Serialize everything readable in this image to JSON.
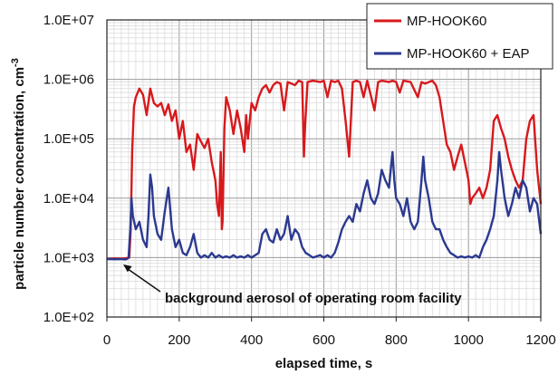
{
  "chart_data": {
    "type": "line",
    "xlabel": "elapsed time, s",
    "ylabel": "particle number concentration, cm",
    "ylabel_superscript": "-3",
    "xlim": [
      0,
      1200
    ],
    "ylim": [
      100,
      10000000
    ],
    "y_scale": "log",
    "grid": true,
    "legend_position": "top-right",
    "x_ticks": [
      0,
      200,
      400,
      600,
      800,
      1000,
      1200
    ],
    "x_tick_labels": [
      "0",
      "200",
      "400",
      "600",
      "800",
      "1000",
      "1200"
    ],
    "y_ticks": [
      100,
      1000,
      10000,
      100000,
      1000000,
      10000000
    ],
    "y_tick_labels": [
      "1.0E+02",
      "1.0E+03",
      "1.0E+04",
      "1.0E+05",
      "1.0E+06",
      "1.0E+07"
    ],
    "annotation": {
      "text": "background aerosol of operating room facility",
      "points_to": {
        "x": 40,
        "y": 950
      }
    },
    "series": [
      {
        "name": "MP-HOOK60",
        "color": "#d7191c",
        "points": [
          [
            0,
            950
          ],
          [
            20,
            970
          ],
          [
            40,
            960
          ],
          [
            55,
            980
          ],
          [
            62,
            1000
          ],
          [
            66,
            3000
          ],
          [
            70,
            60000
          ],
          [
            75,
            350000
          ],
          [
            80,
            500000
          ],
          [
            90,
            700000
          ],
          [
            100,
            550000
          ],
          [
            110,
            250000
          ],
          [
            120,
            700000
          ],
          [
            130,
            400000
          ],
          [
            140,
            350000
          ],
          [
            150,
            400000
          ],
          [
            160,
            250000
          ],
          [
            170,
            380000
          ],
          [
            180,
            200000
          ],
          [
            190,
            300000
          ],
          [
            200,
            100000
          ],
          [
            210,
            200000
          ],
          [
            220,
            60000
          ],
          [
            230,
            80000
          ],
          [
            240,
            30000
          ],
          [
            250,
            120000
          ],
          [
            260,
            90000
          ],
          [
            270,
            70000
          ],
          [
            280,
            100000
          ],
          [
            290,
            40000
          ],
          [
            300,
            20000
          ],
          [
            305,
            8000
          ],
          [
            310,
            5000
          ],
          [
            315,
            60000
          ],
          [
            318,
            3000
          ],
          [
            320,
            4000
          ],
          [
            325,
            150000
          ],
          [
            330,
            500000
          ],
          [
            340,
            300000
          ],
          [
            350,
            120000
          ],
          [
            360,
            300000
          ],
          [
            370,
            150000
          ],
          [
            380,
            60000
          ],
          [
            385,
            250000
          ],
          [
            390,
            100000
          ],
          [
            400,
            400000
          ],
          [
            410,
            300000
          ],
          [
            420,
            500000
          ],
          [
            430,
            700000
          ],
          [
            440,
            800000
          ],
          [
            450,
            600000
          ],
          [
            460,
            800000
          ],
          [
            470,
            900000
          ],
          [
            480,
            850000
          ],
          [
            490,
            300000
          ],
          [
            500,
            900000
          ],
          [
            510,
            850000
          ],
          [
            520,
            800000
          ],
          [
            530,
            950000
          ],
          [
            540,
            900000
          ],
          [
            545,
            50000
          ],
          [
            548,
            150000
          ],
          [
            555,
            900000
          ],
          [
            570,
            950000
          ],
          [
            590,
            900000
          ],
          [
            600,
            950000
          ],
          [
            610,
            500000
          ],
          [
            620,
            950000
          ],
          [
            630,
            900000
          ],
          [
            640,
            950000
          ],
          [
            650,
            700000
          ],
          [
            660,
            200000
          ],
          [
            670,
            50000
          ],
          [
            680,
            900000
          ],
          [
            690,
            950000
          ],
          [
            700,
            900000
          ],
          [
            710,
            500000
          ],
          [
            720,
            950000
          ],
          [
            740,
            300000
          ],
          [
            750,
            900000
          ],
          [
            760,
            950000
          ],
          [
            780,
            900000
          ],
          [
            790,
            950000
          ],
          [
            800,
            900000
          ],
          [
            810,
            600000
          ],
          [
            820,
            950000
          ],
          [
            840,
            900000
          ],
          [
            860,
            500000
          ],
          [
            870,
            900000
          ],
          [
            880,
            850000
          ],
          [
            900,
            950000
          ],
          [
            910,
            800000
          ],
          [
            920,
            500000
          ],
          [
            930,
            200000
          ],
          [
            940,
            80000
          ],
          [
            950,
            60000
          ],
          [
            960,
            30000
          ],
          [
            970,
            50000
          ],
          [
            980,
            80000
          ],
          [
            990,
            40000
          ],
          [
            1000,
            20000
          ],
          [
            1005,
            8000
          ],
          [
            1010,
            10000
          ],
          [
            1020,
            12000
          ],
          [
            1030,
            15000
          ],
          [
            1040,
            10000
          ],
          [
            1050,
            15000
          ],
          [
            1060,
            30000
          ],
          [
            1070,
            200000
          ],
          [
            1080,
            250000
          ],
          [
            1090,
            150000
          ],
          [
            1100,
            100000
          ],
          [
            1110,
            50000
          ],
          [
            1120,
            30000
          ],
          [
            1130,
            20000
          ],
          [
            1140,
            15000
          ],
          [
            1150,
            20000
          ],
          [
            1160,
            100000
          ],
          [
            1170,
            200000
          ],
          [
            1180,
            250000
          ],
          [
            1190,
            30000
          ],
          [
            1200,
            8000
          ]
        ]
      },
      {
        "name": "MP-HOOK60 + EAP",
        "color": "#2b3990",
        "points": [
          [
            0,
            950
          ],
          [
            20,
            940
          ],
          [
            40,
            950
          ],
          [
            50,
            930
          ],
          [
            55,
            950
          ],
          [
            60,
            1000
          ],
          [
            65,
            3000
          ],
          [
            68,
            10000
          ],
          [
            72,
            5000
          ],
          [
            80,
            3000
          ],
          [
            90,
            4000
          ],
          [
            100,
            2000
          ],
          [
            110,
            1500
          ],
          [
            115,
            5000
          ],
          [
            120,
            25000
          ],
          [
            125,
            15000
          ],
          [
            130,
            5000
          ],
          [
            140,
            2500
          ],
          [
            150,
            2000
          ],
          [
            160,
            6000
          ],
          [
            170,
            15000
          ],
          [
            180,
            3000
          ],
          [
            190,
            1500
          ],
          [
            200,
            2000
          ],
          [
            210,
            1200
          ],
          [
            220,
            1100
          ],
          [
            230,
            1500
          ],
          [
            240,
            2500
          ],
          [
            250,
            1200
          ],
          [
            260,
            1000
          ],
          [
            270,
            1100
          ],
          [
            280,
            1000
          ],
          [
            290,
            1200
          ],
          [
            300,
            1000
          ],
          [
            310,
            1100
          ],
          [
            320,
            1000
          ],
          [
            330,
            1050
          ],
          [
            340,
            1000
          ],
          [
            350,
            1100
          ],
          [
            360,
            1000
          ],
          [
            370,
            1050
          ],
          [
            380,
            1000
          ],
          [
            390,
            1100
          ],
          [
            400,
            1000
          ],
          [
            410,
            1100
          ],
          [
            420,
            1200
          ],
          [
            430,
            2500
          ],
          [
            440,
            3000
          ],
          [
            450,
            2000
          ],
          [
            460,
            1800
          ],
          [
            470,
            3000
          ],
          [
            480,
            2000
          ],
          [
            490,
            2500
          ],
          [
            500,
            5000
          ],
          [
            510,
            2000
          ],
          [
            520,
            3000
          ],
          [
            530,
            2500
          ],
          [
            540,
            1500
          ],
          [
            550,
            1200
          ],
          [
            560,
            1100
          ],
          [
            570,
            1000
          ],
          [
            580,
            1050
          ],
          [
            590,
            1100
          ],
          [
            600,
            1000
          ],
          [
            610,
            1100
          ],
          [
            620,
            1000
          ],
          [
            630,
            1200
          ],
          [
            640,
            1800
          ],
          [
            650,
            3000
          ],
          [
            660,
            4000
          ],
          [
            670,
            5000
          ],
          [
            680,
            4000
          ],
          [
            690,
            8000
          ],
          [
            700,
            6000
          ],
          [
            710,
            12000
          ],
          [
            720,
            20000
          ],
          [
            730,
            10000
          ],
          [
            740,
            8000
          ],
          [
            750,
            12000
          ],
          [
            760,
            30000
          ],
          [
            770,
            20000
          ],
          [
            780,
            15000
          ],
          [
            790,
            60000
          ],
          [
            795,
            20000
          ],
          [
            800,
            10000
          ],
          [
            810,
            8000
          ],
          [
            820,
            5000
          ],
          [
            830,
            10000
          ],
          [
            840,
            4000
          ],
          [
            850,
            3000
          ],
          [
            860,
            4000
          ],
          [
            870,
            20000
          ],
          [
            875,
            50000
          ],
          [
            880,
            20000
          ],
          [
            890,
            10000
          ],
          [
            900,
            4000
          ],
          [
            910,
            3000
          ],
          [
            920,
            3000
          ],
          [
            930,
            2000
          ],
          [
            940,
            1500
          ],
          [
            950,
            1200
          ],
          [
            960,
            1100
          ],
          [
            970,
            1000
          ],
          [
            980,
            1050
          ],
          [
            990,
            1000
          ],
          [
            1000,
            1050
          ],
          [
            1010,
            1000
          ],
          [
            1020,
            1100
          ],
          [
            1030,
            1000
          ],
          [
            1040,
            1500
          ],
          [
            1050,
            2000
          ],
          [
            1060,
            3000
          ],
          [
            1070,
            5000
          ],
          [
            1080,
            20000
          ],
          [
            1085,
            60000
          ],
          [
            1090,
            30000
          ],
          [
            1100,
            10000
          ],
          [
            1110,
            5000
          ],
          [
            1120,
            8000
          ],
          [
            1130,
            15000
          ],
          [
            1140,
            10000
          ],
          [
            1150,
            20000
          ],
          [
            1160,
            15000
          ],
          [
            1170,
            6000
          ],
          [
            1180,
            10000
          ],
          [
            1190,
            8000
          ],
          [
            1200,
            2500
          ]
        ]
      }
    ]
  }
}
